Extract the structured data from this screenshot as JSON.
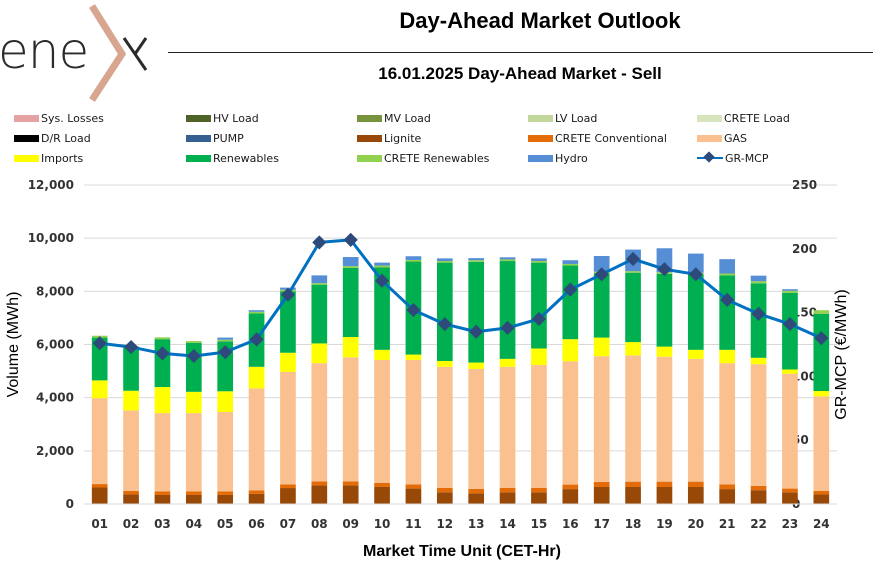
{
  "logo": {
    "text": "ene",
    "mark": "chevron-x",
    "mark_color": "#d8a58e"
  },
  "header": {
    "title": "Day-Ahead Market Outlook",
    "subtitle": "16.01.2025  Day-Ahead Market - Sell"
  },
  "legend": [
    {
      "label": "Sys. Losses",
      "color": "#e6a1a3",
      "kind": "bar"
    },
    {
      "label": "HV Load",
      "color": "#4f6228",
      "kind": "bar"
    },
    {
      "label": "MV Load",
      "color": "#77933c",
      "kind": "bar"
    },
    {
      "label": "LV Load",
      "color": "#c3d69b",
      "kind": "bar"
    },
    {
      "label": "CRETE Load",
      "color": "#d7e4bd",
      "kind": "bar"
    },
    {
      "label": "D/R Load",
      "color": "#000000",
      "kind": "bar"
    },
    {
      "label": "PUMP",
      "color": "#376092",
      "kind": "bar"
    },
    {
      "label": "Lignite",
      "color": "#984807",
      "kind": "bar"
    },
    {
      "label": "CRETE Conventional",
      "color": "#e36c09",
      "kind": "bar"
    },
    {
      "label": "GAS",
      "color": "#fac090",
      "kind": "bar"
    },
    {
      "label": "Imports",
      "color": "#ffff00",
      "kind": "bar"
    },
    {
      "label": "Renewables",
      "color": "#00b050",
      "kind": "bar"
    },
    {
      "label": "CRETE Renewables",
      "color": "#92d050",
      "kind": "bar"
    },
    {
      "label": "Hydro",
      "color": "#558ed5",
      "kind": "bar"
    },
    {
      "label": "GR-MCP",
      "color": "#0070c0",
      "marker_color": "#2e4a7a",
      "kind": "line"
    }
  ],
  "chart_data": {
    "type": "bar",
    "stacked": true,
    "title": "16.01.2025  Day-Ahead Market - Sell",
    "xlabel": "Market Time Unit (CET-Hr)",
    "ylabel": "Volume (MWh)",
    "y2label": "GR-MCP (€/MWh)",
    "ylim": [
      0,
      12000
    ],
    "y2lim": [
      0,
      250
    ],
    "yticks": [
      "0",
      "2,000",
      "4,000",
      "6,000",
      "8,000",
      "10,000",
      "12,000"
    ],
    "yticks_values": [
      0,
      2000,
      4000,
      6000,
      8000,
      10000,
      12000
    ],
    "y2ticks": [
      "0",
      "50",
      "100",
      "150",
      "200",
      "250"
    ],
    "y2ticks_values": [
      0,
      50,
      100,
      150,
      200,
      250
    ],
    "grid": true,
    "legend_position": "top",
    "categories": [
      "01",
      "02",
      "03",
      "04",
      "05",
      "06",
      "07",
      "08",
      "09",
      "10",
      "11",
      "12",
      "13",
      "14",
      "15",
      "16",
      "17",
      "18",
      "19",
      "20",
      "21",
      "22",
      "23",
      "24"
    ],
    "series": [
      {
        "name": "Lignite",
        "color": "#984807",
        "values": [
          620,
          360,
          340,
          340,
          340,
          380,
          600,
          700,
          700,
          640,
          580,
          440,
          400,
          440,
          440,
          560,
          640,
          640,
          640,
          640,
          560,
          520,
          440,
          360
        ]
      },
      {
        "name": "CRETE Conventional",
        "color": "#e36c09",
        "values": [
          130,
          130,
          130,
          130,
          130,
          130,
          140,
          150,
          150,
          150,
          160,
          170,
          170,
          170,
          170,
          170,
          190,
          200,
          200,
          200,
          180,
          160,
          140,
          130
        ]
      },
      {
        "name": "GAS",
        "color": "#fac090",
        "values": [
          3230,
          3030,
          2950,
          2950,
          2990,
          3840,
          4230,
          4450,
          4670,
          4630,
          4680,
          4550,
          4510,
          4550,
          4620,
          4640,
          4730,
          4750,
          4700,
          4620,
          4560,
          4580,
          4320,
          3560
        ]
      },
      {
        "name": "Imports",
        "color": "#ffff00",
        "values": [
          670,
          740,
          980,
          800,
          780,
          810,
          720,
          740,
          760,
          380,
          200,
          220,
          240,
          300,
          620,
          830,
          700,
          500,
          380,
          340,
          500,
          240,
          160,
          200
        ]
      },
      {
        "name": "Renewables",
        "color": "#00b050",
        "values": [
          1610,
          1620,
          1800,
          1840,
          1880,
          2010,
          2310,
          2210,
          2600,
          3100,
          3500,
          3700,
          3790,
          3680,
          3230,
          2770,
          2420,
          2610,
          2740,
          2840,
          2800,
          2800,
          2880,
          2900
        ]
      },
      {
        "name": "CRETE Renewables",
        "color": "#92d050",
        "values": [
          70,
          60,
          70,
          70,
          60,
          60,
          60,
          60,
          70,
          70,
          60,
          60,
          60,
          60,
          60,
          60,
          60,
          60,
          60,
          60,
          70,
          80,
          80,
          140
        ]
      },
      {
        "name": "Hydro",
        "color": "#558ed5",
        "values": [
          0,
          0,
          0,
          0,
          80,
          60,
          80,
          290,
          340,
          110,
          140,
          100,
          80,
          80,
          100,
          140,
          590,
          810,
          900,
          720,
          540,
          210,
          60,
          0
        ]
      }
    ],
    "line_series": {
      "name": "GR-MCP",
      "axis": "right",
      "color": "#0070c0",
      "marker_color": "#2e4a7a",
      "values": [
        126,
        123,
        118,
        116,
        119,
        129,
        164,
        205,
        207,
        175,
        152,
        141,
        135,
        138,
        145,
        168,
        180,
        192,
        184,
        180,
        160,
        149,
        141,
        130
      ]
    }
  }
}
